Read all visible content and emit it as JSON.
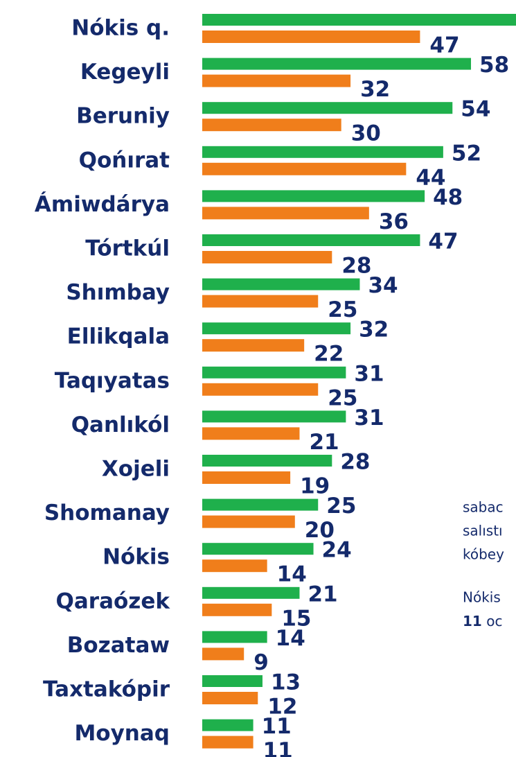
{
  "chart_data": {
    "type": "bar",
    "orientation": "horizontal",
    "categories": [
      "Nókis q.",
      "Kegeyli",
      "Beruniy",
      "Qońırat",
      "Ámiwdárya",
      "Tórtkúl",
      "Shımbay",
      "Ellikqala",
      "Taqıyatas",
      "Qanlıkól",
      "Xojeli",
      "Shomanay",
      "Nókis",
      "Qaraózek",
      "Bozataw",
      "Taxtakópir",
      "Moynaq"
    ],
    "series": [
      {
        "color": "#1fb04c",
        "values": [
          70,
          58,
          54,
          52,
          48,
          47,
          34,
          32,
          31,
          31,
          28,
          25,
          24,
          21,
          14,
          13,
          11
        ]
      },
      {
        "color": "#f07e1b",
        "values": [
          47,
          32,
          30,
          44,
          36,
          28,
          25,
          22,
          25,
          21,
          19,
          20,
          14,
          15,
          9,
          12,
          11
        ]
      }
    ],
    "xlim": [
      0,
      100
    ]
  },
  "side_text": {
    "lines": [
      "sabac",
      "salıstı",
      "kóbey"
    ],
    "lines2": [
      "Nókis"
    ],
    "last_bold": "11",
    "last_rest": " oc"
  }
}
